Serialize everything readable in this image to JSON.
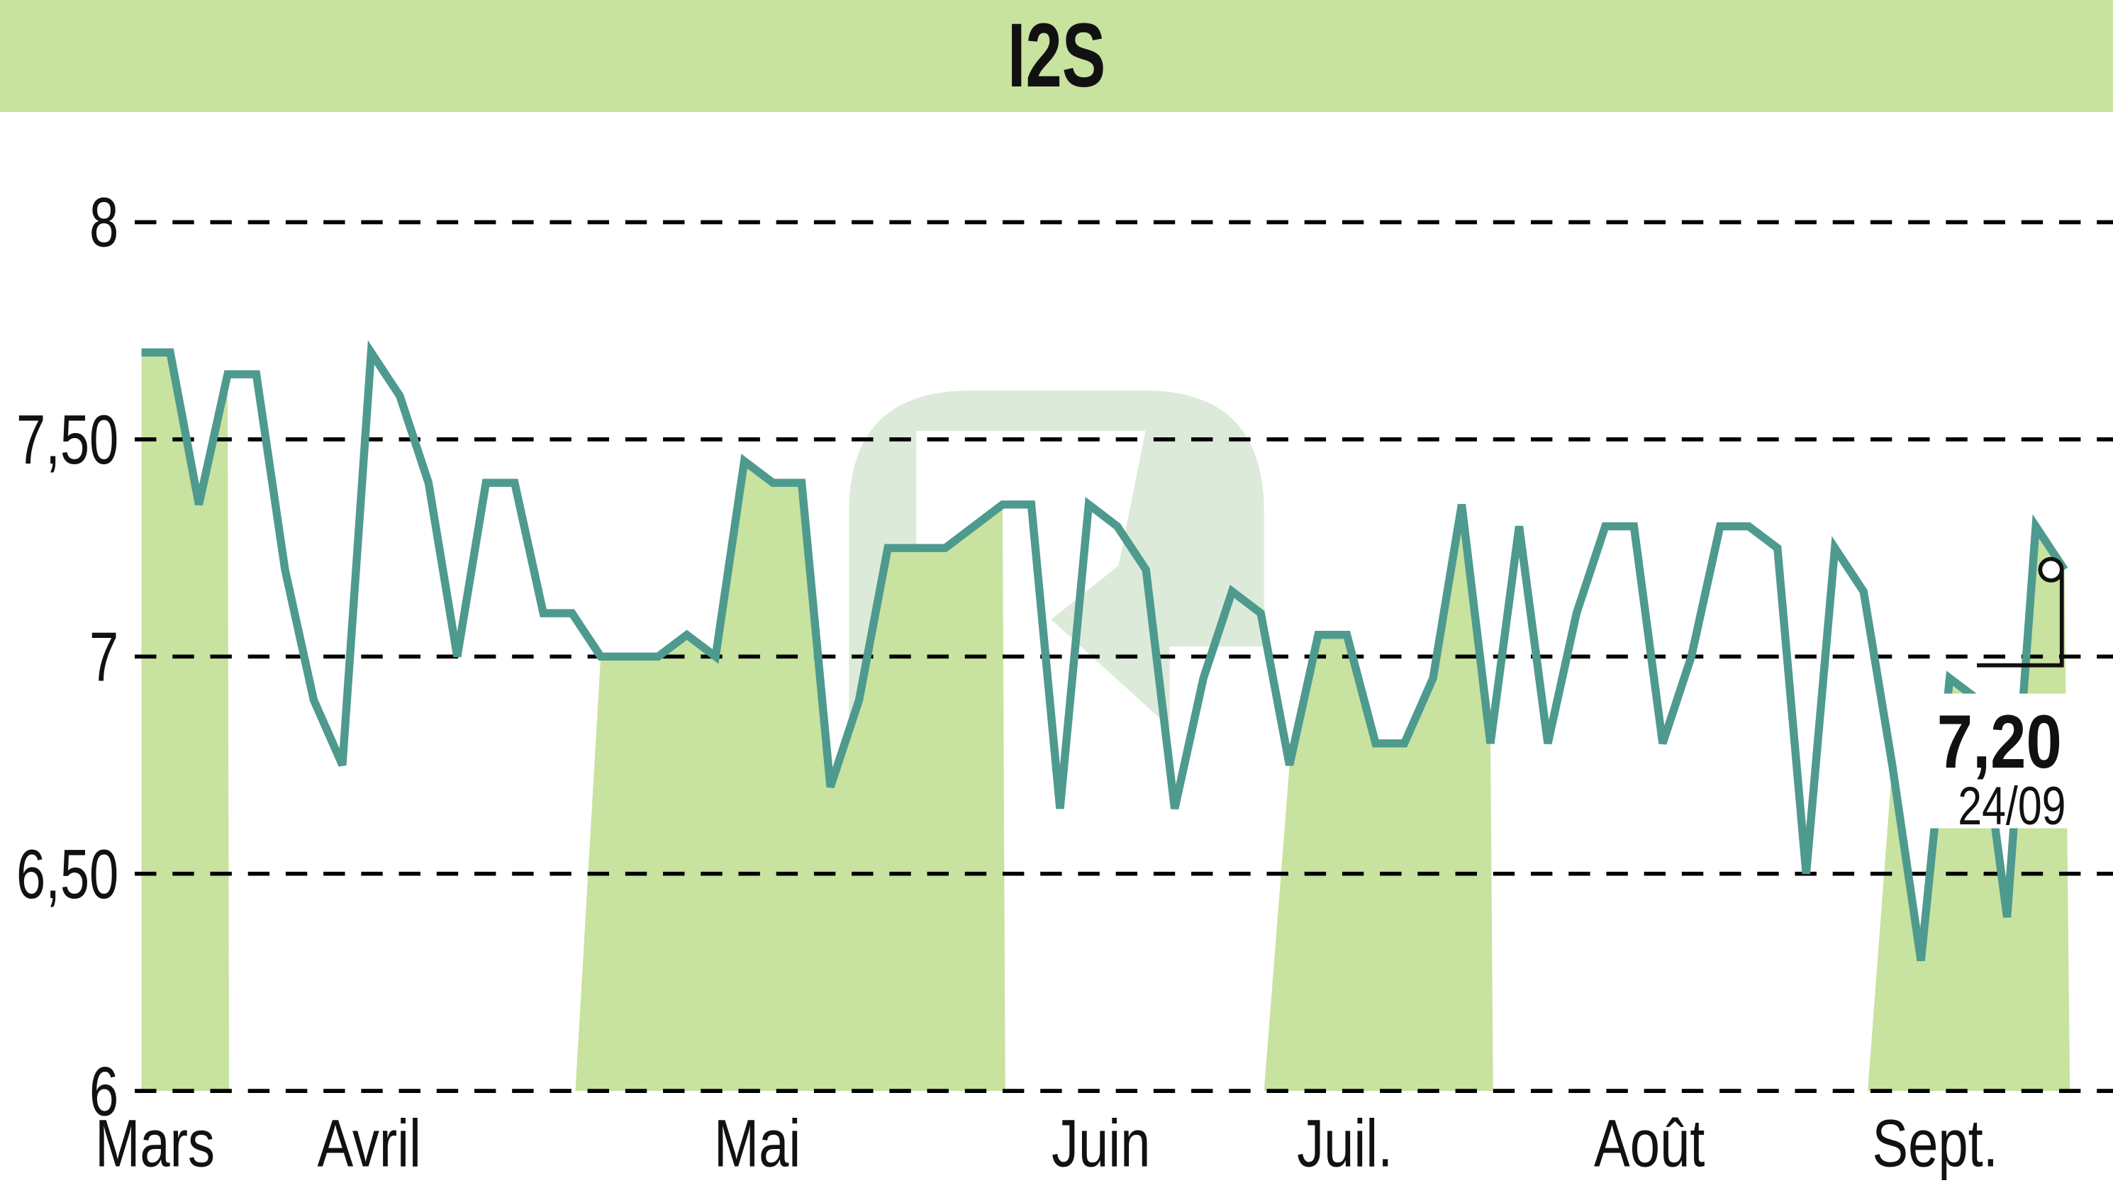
{
  "header": {
    "title": "I2S"
  },
  "colors": {
    "band": "#c8e29f",
    "line": "#4e9a8f",
    "grid": "#000000",
    "watermark": "#d6e8d2"
  },
  "last_value": {
    "price": "7,20",
    "date": "24/09"
  },
  "chart_data": {
    "type": "line",
    "title": "I2S",
    "xlabel": "",
    "ylabel": "",
    "ylim": [
      6,
      8
    ],
    "yticks": [
      6,
      6.5,
      7,
      7.5,
      8
    ],
    "ytick_labels": [
      "6",
      "6,50",
      "7",
      "7,50",
      "8"
    ],
    "month_labels": [
      "Mars",
      "Avril",
      "Mai",
      "Juin",
      "Juil.",
      "Août",
      "Sept."
    ],
    "grid": true,
    "grid_style": "dashed horizontal",
    "legend": "none",
    "annotation": {
      "value": "7,20",
      "date": "24/09"
    },
    "series": [
      {
        "name": "I2S",
        "values": [
          7.7,
          7.7,
          7.35,
          7.65,
          7.65,
          7.2,
          6.9,
          6.75,
          7.7,
          7.6,
          7.4,
          7.0,
          7.4,
          7.4,
          7.1,
          7.1,
          7.0,
          7.0,
          7.0,
          7.05,
          7.0,
          7.45,
          7.4,
          7.4,
          6.7,
          6.9,
          7.25,
          7.25,
          7.25,
          7.3,
          7.35,
          7.35,
          6.65,
          7.35,
          7.3,
          7.2,
          6.65,
          6.95,
          7.15,
          7.1,
          6.75,
          7.05,
          7.05,
          6.8,
          6.8,
          6.95,
          7.35,
          6.8,
          7.3,
          6.8,
          7.1,
          7.3,
          7.3,
          6.8,
          7.0,
          7.3,
          7.3,
          7.25,
          6.5,
          7.25,
          7.15,
          6.75,
          6.3,
          6.95,
          6.9,
          6.4,
          7.3,
          7.2
        ]
      }
    ]
  }
}
